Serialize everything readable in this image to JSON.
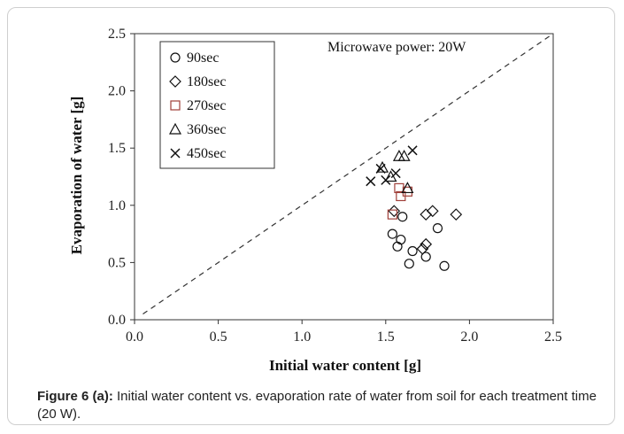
{
  "chart_data": {
    "type": "scatter",
    "xlabel": "Initial water content [g]",
    "ylabel": "Evaporation of water [g]",
    "xlim": [
      0.0,
      2.5
    ],
    "ylim": [
      0.0,
      2.5
    ],
    "x_ticks": [
      "0.0",
      "0.5",
      "1.0",
      "1.5",
      "2.0",
      "2.5"
    ],
    "y_ticks": [
      "0.0",
      "0.5",
      "1.0",
      "1.5",
      "2.0",
      "2.5"
    ],
    "grid": false,
    "legend_position": "top-left",
    "annotation": "Microwave power: 20W",
    "reference_line": "y = x (dashed)",
    "series": [
      {
        "name": "90sec",
        "marker": "circle",
        "color": "#111111",
        "points": [
          [
            1.54,
            0.75
          ],
          [
            1.57,
            0.64
          ],
          [
            1.59,
            0.7
          ],
          [
            1.6,
            0.9
          ],
          [
            1.64,
            0.49
          ],
          [
            1.66,
            0.6
          ],
          [
            1.74,
            0.55
          ],
          [
            1.81,
            0.8
          ],
          [
            1.85,
            0.47
          ]
        ]
      },
      {
        "name": "180sec",
        "marker": "diamond",
        "color": "#111111",
        "points": [
          [
            1.55,
            0.95
          ],
          [
            1.72,
            0.62
          ],
          [
            1.74,
            0.66
          ],
          [
            1.74,
            0.92
          ],
          [
            1.78,
            0.95
          ],
          [
            1.92,
            0.92
          ]
        ]
      },
      {
        "name": "270sec",
        "marker": "square",
        "color": "#a0403a",
        "points": [
          [
            1.54,
            0.92
          ],
          [
            1.58,
            1.15
          ],
          [
            1.59,
            1.08
          ],
          [
            1.63,
            1.12
          ]
        ]
      },
      {
        "name": "360sec",
        "marker": "triangle",
        "color": "#111111",
        "points": [
          [
            1.48,
            1.33
          ],
          [
            1.53,
            1.25
          ],
          [
            1.58,
            1.43
          ],
          [
            1.61,
            1.43
          ],
          [
            1.63,
            1.15
          ]
        ]
      },
      {
        "name": "450sec",
        "marker": "x",
        "color": "#111111",
        "points": [
          [
            1.41,
            1.21
          ],
          [
            1.47,
            1.32
          ],
          [
            1.5,
            1.22
          ],
          [
            1.56,
            1.28
          ],
          [
            1.66,
            1.48
          ]
        ]
      }
    ]
  },
  "caption": {
    "label": "Figure 6 (a):",
    "text": " Initial water content vs. evaporation rate of water from soil for each treatment time (20 W)."
  }
}
